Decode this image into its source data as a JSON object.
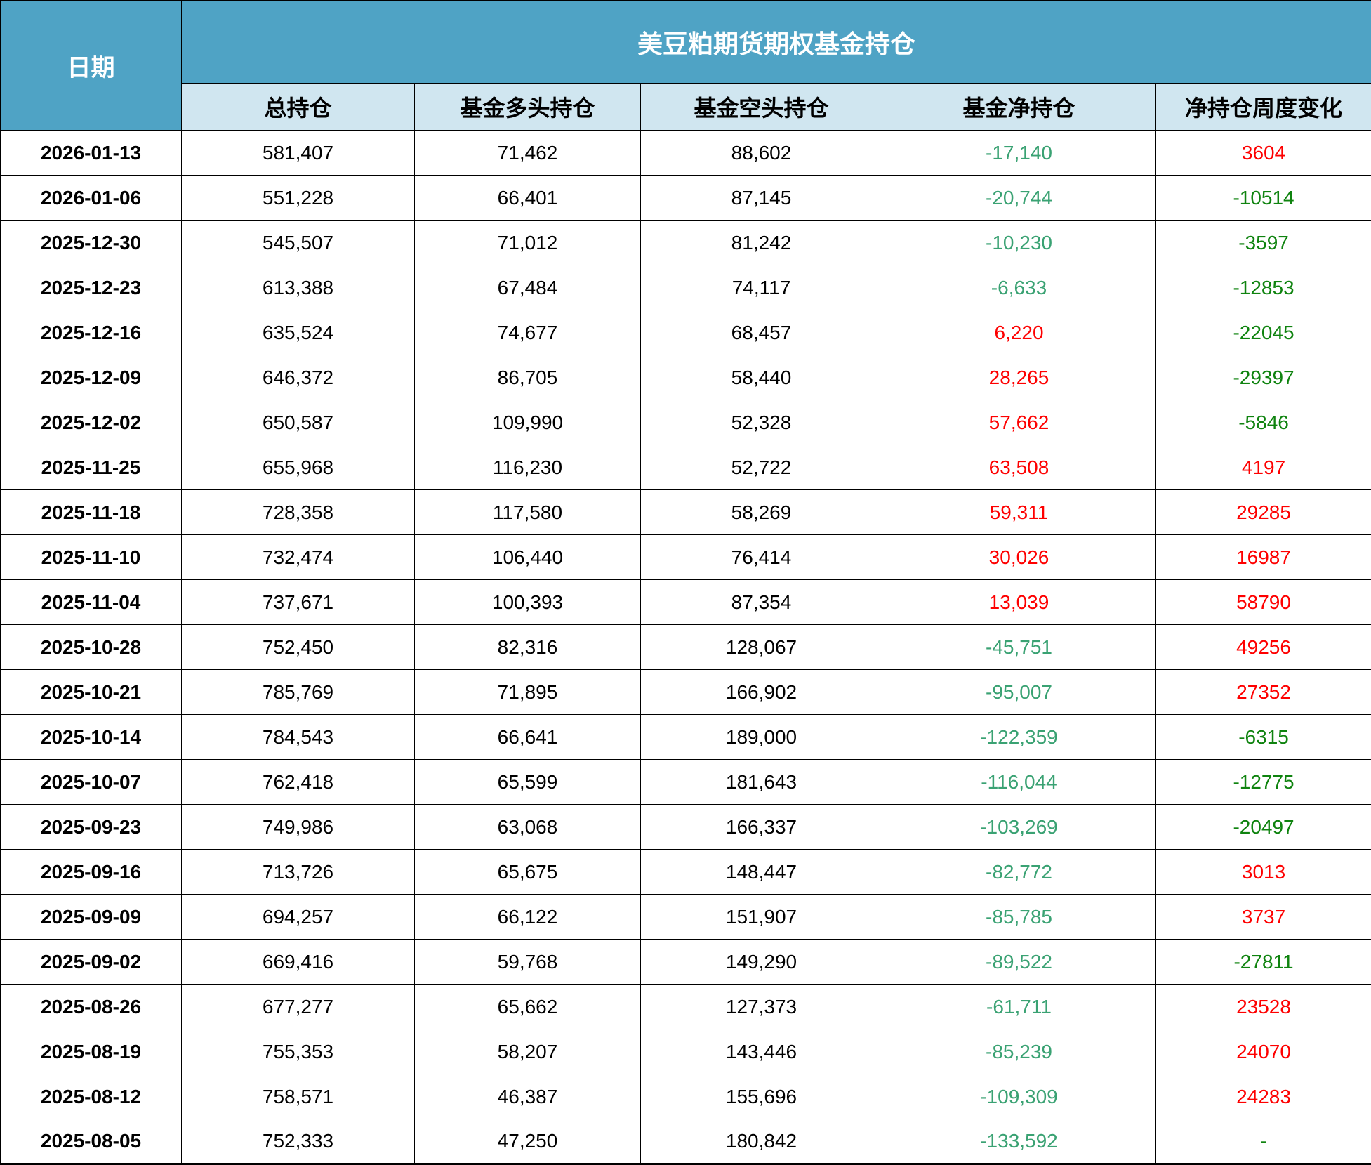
{
  "colors": {
    "header_bg": "#4fa3c5",
    "subheader_bg": "#d0e6f0",
    "positive_red": "#fe0000",
    "net_negative_green": "#3aa273",
    "weekly_negative_green": "#0f830f"
  },
  "chart_data": {
    "type": "table",
    "title": "美豆粕期货期权基金持仓",
    "date_header": "日期",
    "columns": [
      "总持仓",
      "基金多头持仓",
      "基金空头持仓",
      "基金净持仓",
      "净持仓周度变化"
    ],
    "rows": [
      {
        "date": "2026-01-13",
        "total": "581,407",
        "fund_long": "71,462",
        "fund_short": "88,602",
        "fund_net": "-17,140",
        "weekly_change": "3604"
      },
      {
        "date": "2026-01-06",
        "total": "551,228",
        "fund_long": "66,401",
        "fund_short": "87,145",
        "fund_net": "-20,744",
        "weekly_change": "-10514"
      },
      {
        "date": "2025-12-30",
        "total": "545,507",
        "fund_long": "71,012",
        "fund_short": "81,242",
        "fund_net": "-10,230",
        "weekly_change": "-3597"
      },
      {
        "date": "2025-12-23",
        "total": "613,388",
        "fund_long": "67,484",
        "fund_short": "74,117",
        "fund_net": "-6,633",
        "weekly_change": "-12853"
      },
      {
        "date": "2025-12-16",
        "total": "635,524",
        "fund_long": "74,677",
        "fund_short": "68,457",
        "fund_net": "6,220",
        "weekly_change": "-22045"
      },
      {
        "date": "2025-12-09",
        "total": "646,372",
        "fund_long": "86,705",
        "fund_short": "58,440",
        "fund_net": "28,265",
        "weekly_change": "-29397"
      },
      {
        "date": "2025-12-02",
        "total": "650,587",
        "fund_long": "109,990",
        "fund_short": "52,328",
        "fund_net": "57,662",
        "weekly_change": "-5846"
      },
      {
        "date": "2025-11-25",
        "total": "655,968",
        "fund_long": "116,230",
        "fund_short": "52,722",
        "fund_net": "63,508",
        "weekly_change": "4197"
      },
      {
        "date": "2025-11-18",
        "total": "728,358",
        "fund_long": "117,580",
        "fund_short": "58,269",
        "fund_net": "59,311",
        "weekly_change": "29285"
      },
      {
        "date": "2025-11-10",
        "total": "732,474",
        "fund_long": "106,440",
        "fund_short": "76,414",
        "fund_net": "30,026",
        "weekly_change": "16987"
      },
      {
        "date": "2025-11-04",
        "total": "737,671",
        "fund_long": "100,393",
        "fund_short": "87,354",
        "fund_net": "13,039",
        "weekly_change": "58790"
      },
      {
        "date": "2025-10-28",
        "total": "752,450",
        "fund_long": "82,316",
        "fund_short": "128,067",
        "fund_net": "-45,751",
        "weekly_change": "49256"
      },
      {
        "date": "2025-10-21",
        "total": "785,769",
        "fund_long": "71,895",
        "fund_short": "166,902",
        "fund_net": "-95,007",
        "weekly_change": "27352"
      },
      {
        "date": "2025-10-14",
        "total": "784,543",
        "fund_long": "66,641",
        "fund_short": "189,000",
        "fund_net": "-122,359",
        "weekly_change": "-6315"
      },
      {
        "date": "2025-10-07",
        "total": "762,418",
        "fund_long": "65,599",
        "fund_short": "181,643",
        "fund_net": "-116,044",
        "weekly_change": "-12775"
      },
      {
        "date": "2025-09-23",
        "total": "749,986",
        "fund_long": "63,068",
        "fund_short": "166,337",
        "fund_net": "-103,269",
        "weekly_change": "-20497"
      },
      {
        "date": "2025-09-16",
        "total": "713,726",
        "fund_long": "65,675",
        "fund_short": "148,447",
        "fund_net": "-82,772",
        "weekly_change": "3013"
      },
      {
        "date": "2025-09-09",
        "total": "694,257",
        "fund_long": "66,122",
        "fund_short": "151,907",
        "fund_net": "-85,785",
        "weekly_change": "3737"
      },
      {
        "date": "2025-09-02",
        "total": "669,416",
        "fund_long": "59,768",
        "fund_short": "149,290",
        "fund_net": "-89,522",
        "weekly_change": "-27811"
      },
      {
        "date": "2025-08-26",
        "total": "677,277",
        "fund_long": "65,662",
        "fund_short": "127,373",
        "fund_net": "-61,711",
        "weekly_change": "23528"
      },
      {
        "date": "2025-08-19",
        "total": "755,353",
        "fund_long": "58,207",
        "fund_short": "143,446",
        "fund_net": "-85,239",
        "weekly_change": "24070"
      },
      {
        "date": "2025-08-12",
        "total": "758,571",
        "fund_long": "46,387",
        "fund_short": "155,696",
        "fund_net": "-109,309",
        "weekly_change": "24283"
      },
      {
        "date": "2025-08-05",
        "total": "752,333",
        "fund_long": "47,250",
        "fund_short": "180,842",
        "fund_net": "-133,592",
        "weekly_change": "-"
      }
    ]
  }
}
